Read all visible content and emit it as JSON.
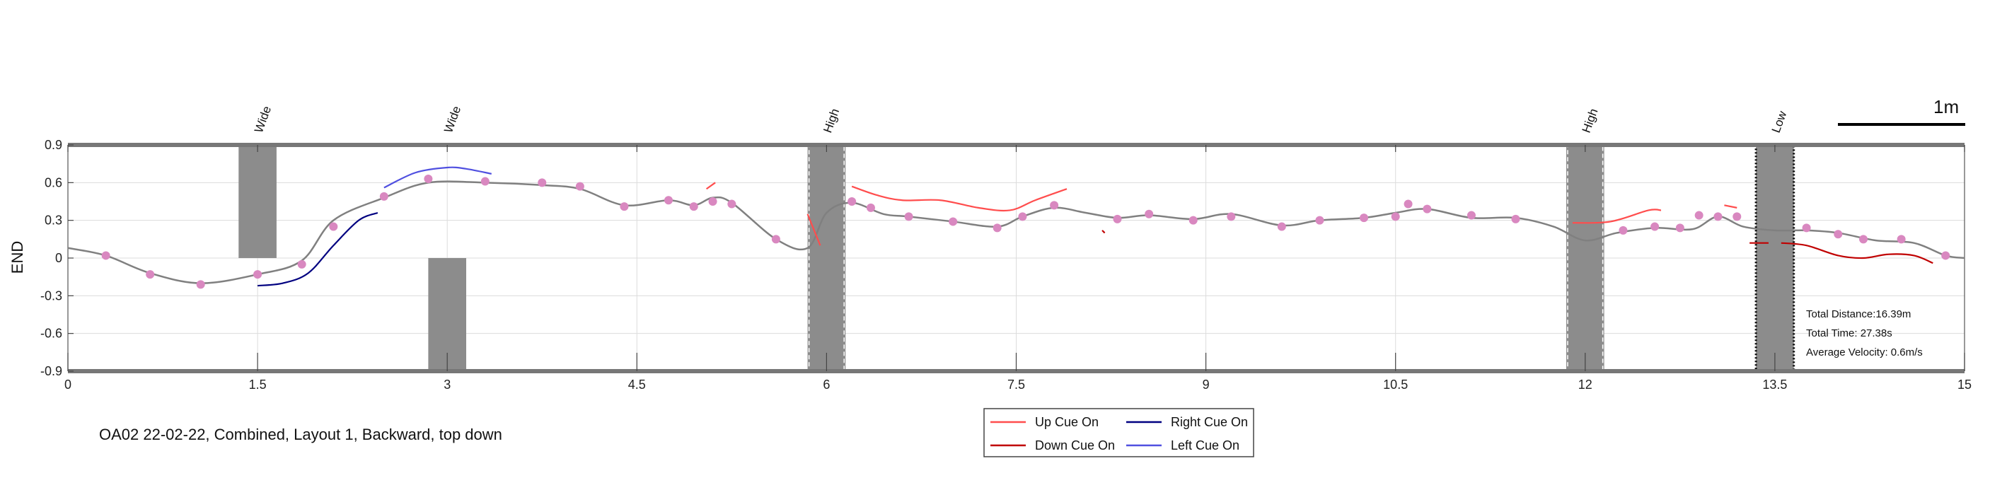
{
  "chart_data": {
    "type": "line",
    "ylabel": "END",
    "xlim": [
      0,
      15
    ],
    "ylim": [
      -0.9,
      0.9
    ],
    "x_ticks": [
      "0",
      "1.5",
      "3",
      "4.5",
      "6",
      "7.5",
      "9",
      "10.5",
      "12",
      "13.5",
      "15"
    ],
    "x_tick_values": [
      0,
      1.5,
      3,
      4.5,
      6,
      7.5,
      9,
      10.5,
      12,
      13.5,
      15
    ],
    "y_ticks": [
      "0.9",
      "0.6",
      "0.3",
      "0",
      "-0.3",
      "-0.6",
      "-0.9"
    ],
    "y_tick_values": [
      0.9,
      0.6,
      0.3,
      0,
      -0.3,
      -0.6,
      -0.9
    ],
    "grid": true,
    "caption": "OA02 22-02-22, Combined, Layout 1, Backward, top down",
    "scale_bar_label": "1m",
    "stats": [
      "Total Distance:16.39m",
      "Total Time: 27.38s",
      "Average Velocity: 0.6m/s"
    ],
    "obstacles": [
      {
        "label": "Wide",
        "x0": 1.35,
        "x1": 1.65,
        "y0": 0.0,
        "y1": 0.9,
        "style": "solid"
      },
      {
        "label": "Wide",
        "x0": 2.85,
        "x1": 3.15,
        "y0": -0.9,
        "y1": 0.0,
        "style": "solid"
      },
      {
        "label": "High",
        "x0": 5.85,
        "x1": 6.15,
        "y0": -0.9,
        "y1": 0.9,
        "style": "dashed"
      },
      {
        "label": "High",
        "x0": 11.85,
        "x1": 12.15,
        "y0": -0.9,
        "y1": 0.9,
        "style": "dashed"
      },
      {
        "label": "Low",
        "x0": 13.35,
        "x1": 13.65,
        "y0": -0.9,
        "y1": 0.9,
        "style": "dotted"
      }
    ],
    "series": [
      {
        "color": "#808080",
        "x": [
          0,
          0.3,
          0.65,
          1.05,
          1.5,
          1.85,
          2.1,
          2.5,
          2.85,
          3.3,
          3.75,
          4.05,
          4.4,
          4.75,
          4.95,
          5.1,
          5.25,
          5.6,
          5.85,
          6.0,
          6.2,
          6.45,
          6.65,
          7.0,
          7.35,
          7.55,
          7.8,
          8.05,
          8.3,
          8.55,
          8.9,
          9.2,
          9.6,
          9.9,
          10.25,
          10.5,
          10.75,
          11.1,
          11.45,
          11.75,
          12.0,
          12.25,
          12.55,
          12.85,
          13.05,
          13.25,
          13.5,
          13.75,
          14.0,
          14.3,
          14.6,
          14.85,
          15.0
        ],
        "y": [
          0.08,
          0.02,
          -0.12,
          -0.2,
          -0.13,
          -0.02,
          0.3,
          0.48,
          0.6,
          0.6,
          0.58,
          0.55,
          0.42,
          0.46,
          0.42,
          0.48,
          0.44,
          0.15,
          0.08,
          0.36,
          0.44,
          0.35,
          0.33,
          0.29,
          0.25,
          0.33,
          0.4,
          0.36,
          0.32,
          0.34,
          0.31,
          0.35,
          0.26,
          0.3,
          0.32,
          0.36,
          0.39,
          0.32,
          0.32,
          0.25,
          0.14,
          0.2,
          0.24,
          0.23,
          0.33,
          0.25,
          0.22,
          0.22,
          0.2,
          0.14,
          0.12,
          0.02,
          0.0
        ]
      },
      {
        "name": "Up Cue On",
        "color": "#ff4d4d",
        "segments": [
          {
            "x": [
              5.05,
              5.12
            ],
            "y": [
              0.55,
              0.6
            ]
          },
          {
            "x": [
              5.85,
              5.95
            ],
            "y": [
              0.35,
              0.1
            ]
          },
          {
            "x": [
              6.2,
              6.4,
              6.6,
              6.9,
              7.2,
              7.45,
              7.65,
              7.9
            ],
            "y": [
              0.57,
              0.5,
              0.46,
              0.46,
              0.4,
              0.38,
              0.46,
              0.55
            ]
          },
          {
            "x": [
              11.9,
              12.2,
              12.5,
              12.6
            ],
            "y": [
              0.28,
              0.29,
              0.38,
              0.38
            ]
          },
          {
            "x": [
              13.1,
              13.2
            ],
            "y": [
              0.42,
              0.4
            ]
          }
        ]
      },
      {
        "name": "Down Cue On",
        "color": "#c00000",
        "segments": [
          {
            "x": [
              8.18,
              8.2
            ],
            "y": [
              0.22,
              0.2
            ]
          },
          {
            "x": [
              13.3,
              13.45
            ],
            "y": [
              0.12,
              0.12
            ]
          },
          {
            "x": [
              13.55,
              13.75,
              14.0,
              14.2,
              14.4,
              14.6,
              14.75
            ],
            "y": [
              0.12,
              0.1,
              0.02,
              0.0,
              0.03,
              0.02,
              -0.04
            ]
          }
        ]
      },
      {
        "name": "Right Cue On",
        "color": "#000080",
        "segments": [
          {
            "x": [
              1.5,
              1.7,
              1.9,
              2.1,
              2.3,
              2.45
            ],
            "y": [
              -0.22,
              -0.2,
              -0.12,
              0.1,
              0.3,
              0.36
            ]
          }
        ]
      },
      {
        "name": "Left Cue On",
        "color": "#5050e0",
        "segments": [
          {
            "x": [
              2.5,
              2.75,
              3.0,
              3.15,
              3.35
            ],
            "y": [
              0.56,
              0.68,
              0.72,
              0.71,
              0.67
            ]
          }
        ]
      }
    ],
    "markers": {
      "color": "#d988c0",
      "x": [
        0.3,
        0.65,
        1.05,
        1.5,
        1.85,
        2.1,
        2.5,
        2.85,
        3.3,
        3.75,
        4.05,
        4.4,
        4.75,
        4.95,
        5.1,
        5.25,
        5.6,
        6.2,
        6.35,
        6.65,
        7.0,
        7.35,
        7.55,
        7.8,
        8.3,
        8.55,
        8.9,
        9.2,
        9.6,
        9.9,
        10.25,
        10.5,
        10.6,
        10.75,
        11.1,
        11.45,
        12.3,
        12.55,
        12.75,
        12.9,
        13.05,
        13.2,
        13.75,
        14.0,
        14.2,
        14.5,
        14.85
      ],
      "y": [
        0.02,
        -0.13,
        -0.21,
        -0.13,
        -0.05,
        0.25,
        0.49,
        0.63,
        0.61,
        0.6,
        0.57,
        0.41,
        0.46,
        0.41,
        0.45,
        0.43,
        0.15,
        0.45,
        0.4,
        0.33,
        0.29,
        0.24,
        0.33,
        0.42,
        0.31,
        0.35,
        0.3,
        0.33,
        0.25,
        0.3,
        0.32,
        0.33,
        0.43,
        0.39,
        0.34,
        0.31,
        0.22,
        0.25,
        0.24,
        0.34,
        0.33,
        0.33,
        0.24,
        0.19,
        0.15,
        0.15,
        0.02
      ]
    },
    "legend": {
      "placement": "bottom-center",
      "entries": [
        {
          "label": "Up Cue On",
          "color": "#ff4d4d"
        },
        {
          "label": "Right Cue On",
          "color": "#000080"
        },
        {
          "label": "Down Cue On",
          "color": "#c00000"
        },
        {
          "label": "Left Cue On",
          "color": "#5050e0"
        }
      ]
    }
  }
}
